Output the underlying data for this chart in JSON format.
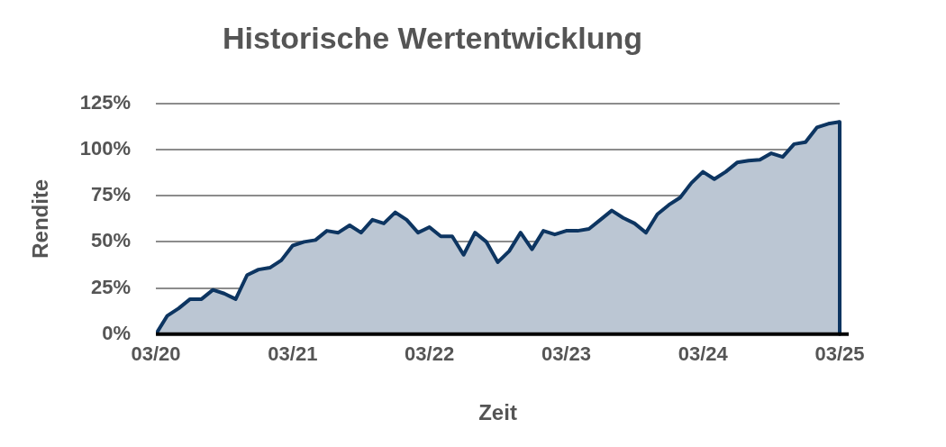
{
  "chart_data": {
    "type": "area",
    "title": "Historische Wertentwicklung",
    "xlabel": "Zeit",
    "ylabel": "Rendite",
    "x": [
      "2020-03",
      "2020-04",
      "2020-05",
      "2020-06",
      "2020-07",
      "2020-08",
      "2020-09",
      "2020-10",
      "2020-11",
      "2020-12",
      "2021-01",
      "2021-02",
      "2021-03",
      "2021-04",
      "2021-05",
      "2021-06",
      "2021-07",
      "2021-08",
      "2021-09",
      "2021-10",
      "2021-11",
      "2021-12",
      "2022-01",
      "2022-02",
      "2022-03",
      "2022-04",
      "2022-05",
      "2022-06",
      "2022-07",
      "2022-08",
      "2022-09",
      "2022-10",
      "2022-11",
      "2022-12",
      "2023-01",
      "2023-02",
      "2023-03",
      "2023-04",
      "2023-05",
      "2023-06",
      "2023-07",
      "2023-08",
      "2023-09",
      "2023-10",
      "2023-11",
      "2023-12",
      "2024-01",
      "2024-02",
      "2024-03",
      "2024-04",
      "2024-05",
      "2024-06",
      "2024-07",
      "2024-08",
      "2024-09",
      "2024-10",
      "2024-11",
      "2024-12",
      "2025-01",
      "2025-02",
      "2025-03"
    ],
    "series": [
      {
        "color": "#0d3561",
        "values": [
          0,
          10,
          14,
          19,
          19,
          24,
          22,
          19,
          32,
          35,
          36,
          40,
          48,
          50,
          51,
          56,
          55,
          59,
          55,
          62,
          60,
          66,
          62,
          55,
          58,
          53,
          53,
          43,
          55,
          50,
          39,
          45,
          55,
          46,
          56,
          54,
          56,
          56,
          57,
          62,
          67,
          63,
          60,
          55,
          65,
          70,
          74,
          82,
          88,
          84,
          88,
          93,
          94,
          94.5,
          98,
          96,
          103,
          104,
          112,
          114,
          115
        ]
      }
    ],
    "xlim": [
      "2020-03",
      "2025-03"
    ],
    "xticks": [
      {
        "value": "2020-03",
        "label": "03/20"
      },
      {
        "value": "2021-03",
        "label": "03/21"
      },
      {
        "value": "2022-03",
        "label": "03/22"
      },
      {
        "value": "2023-03",
        "label": "03/23"
      },
      {
        "value": "2024-03",
        "label": "03/24"
      },
      {
        "value": "2025-03",
        "label": "03/25"
      }
    ],
    "ylim": [
      0,
      125
    ],
    "yticks": [
      {
        "value": 0,
        "label": "0%"
      },
      {
        "value": 25,
        "label": "25%"
      },
      {
        "value": 50,
        "label": "50%"
      },
      {
        "value": 75,
        "label": "75%"
      },
      {
        "value": 100,
        "label": "100%"
      },
      {
        "value": 125,
        "label": "125%"
      }
    ],
    "grid": "y",
    "legend": false
  }
}
